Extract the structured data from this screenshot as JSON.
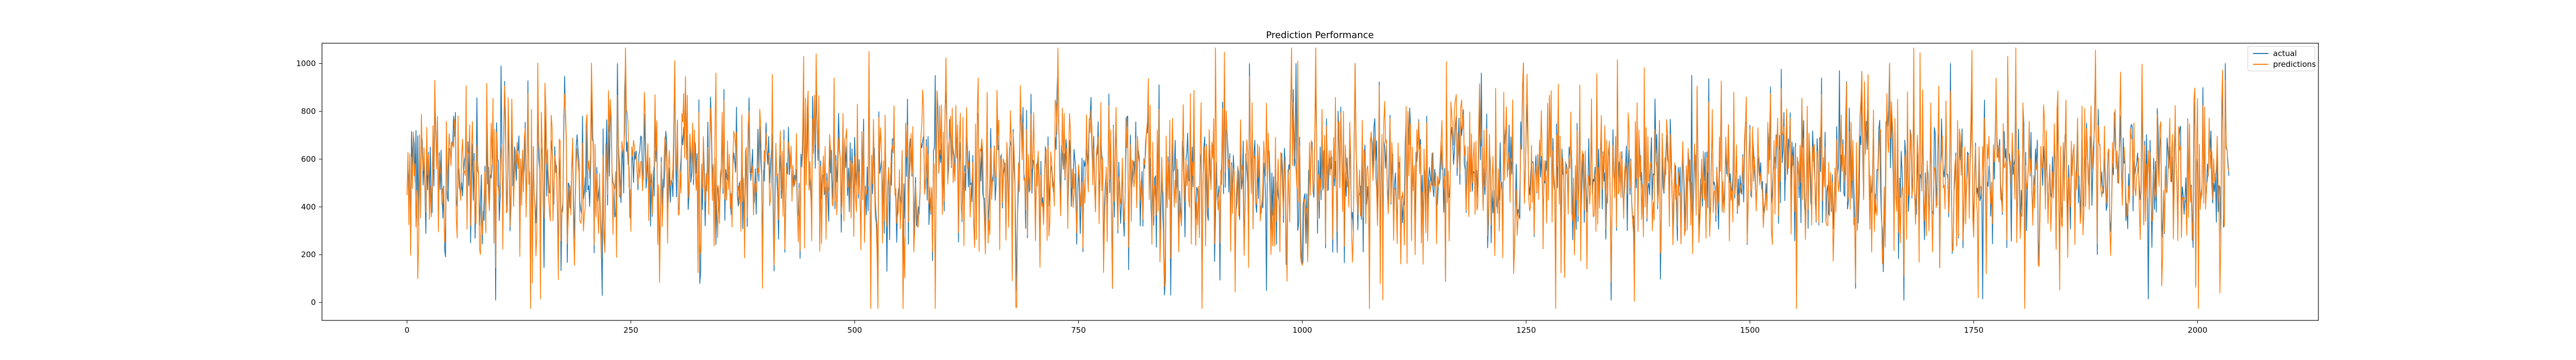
{
  "chart_data": {
    "type": "line",
    "title": "Prediction Performance",
    "xlabel": "",
    "ylabel": "",
    "xlim": [
      -95,
      2135
    ],
    "ylim": [
      -75,
      1085
    ],
    "xticks": [
      0,
      250,
      500,
      750,
      1000,
      1250,
      1500,
      1750,
      2000
    ],
    "yticks": [
      0,
      200,
      400,
      600,
      800,
      1000
    ],
    "grid": false,
    "legend": "top-right",
    "n_points": 2036,
    "series": [
      {
        "name": "actual",
        "color": "#1f77b4",
        "typical_range": [
          200,
          900
        ],
        "mean": 530,
        "notable_points": [
          {
            "x": 0,
            "y": 450
          },
          {
            "x": 10,
            "y": 720
          },
          {
            "x": 105,
            "y": 990
          },
          {
            "x": 218,
            "y": 30
          },
          {
            "x": 590,
            "y": 950
          },
          {
            "x": 960,
            "y": 50
          },
          {
            "x": 993,
            "y": 1000
          },
          {
            "x": 1200,
            "y": 960
          },
          {
            "x": 1435,
            "y": 950
          },
          {
            "x": 1600,
            "y": 970
          },
          {
            "x": 1760,
            "y": 15
          },
          {
            "x": 1945,
            "y": 15
          },
          {
            "x": 2035,
            "y": 530
          }
        ]
      },
      {
        "name": "predictions",
        "color": "#ff7f0e",
        "typical_range": [
          200,
          900
        ],
        "mean": 530,
        "notable_points": [
          {
            "x": 0,
            "y": 450
          },
          {
            "x": 12,
            "y": 100
          },
          {
            "x": 345,
            "y": 960
          },
          {
            "x": 590,
            "y": -25
          },
          {
            "x": 680,
            "y": -20
          },
          {
            "x": 903,
            "y": 1065
          },
          {
            "x": 995,
            "y": 1010
          },
          {
            "x": 1090,
            "y": 10
          },
          {
            "x": 1690,
            "y": 1045
          },
          {
            "x": 1755,
            "y": 20
          },
          {
            "x": 2025,
            "y": 40
          },
          {
            "x": 2035,
            "y": 550
          }
        ]
      }
    ]
  }
}
